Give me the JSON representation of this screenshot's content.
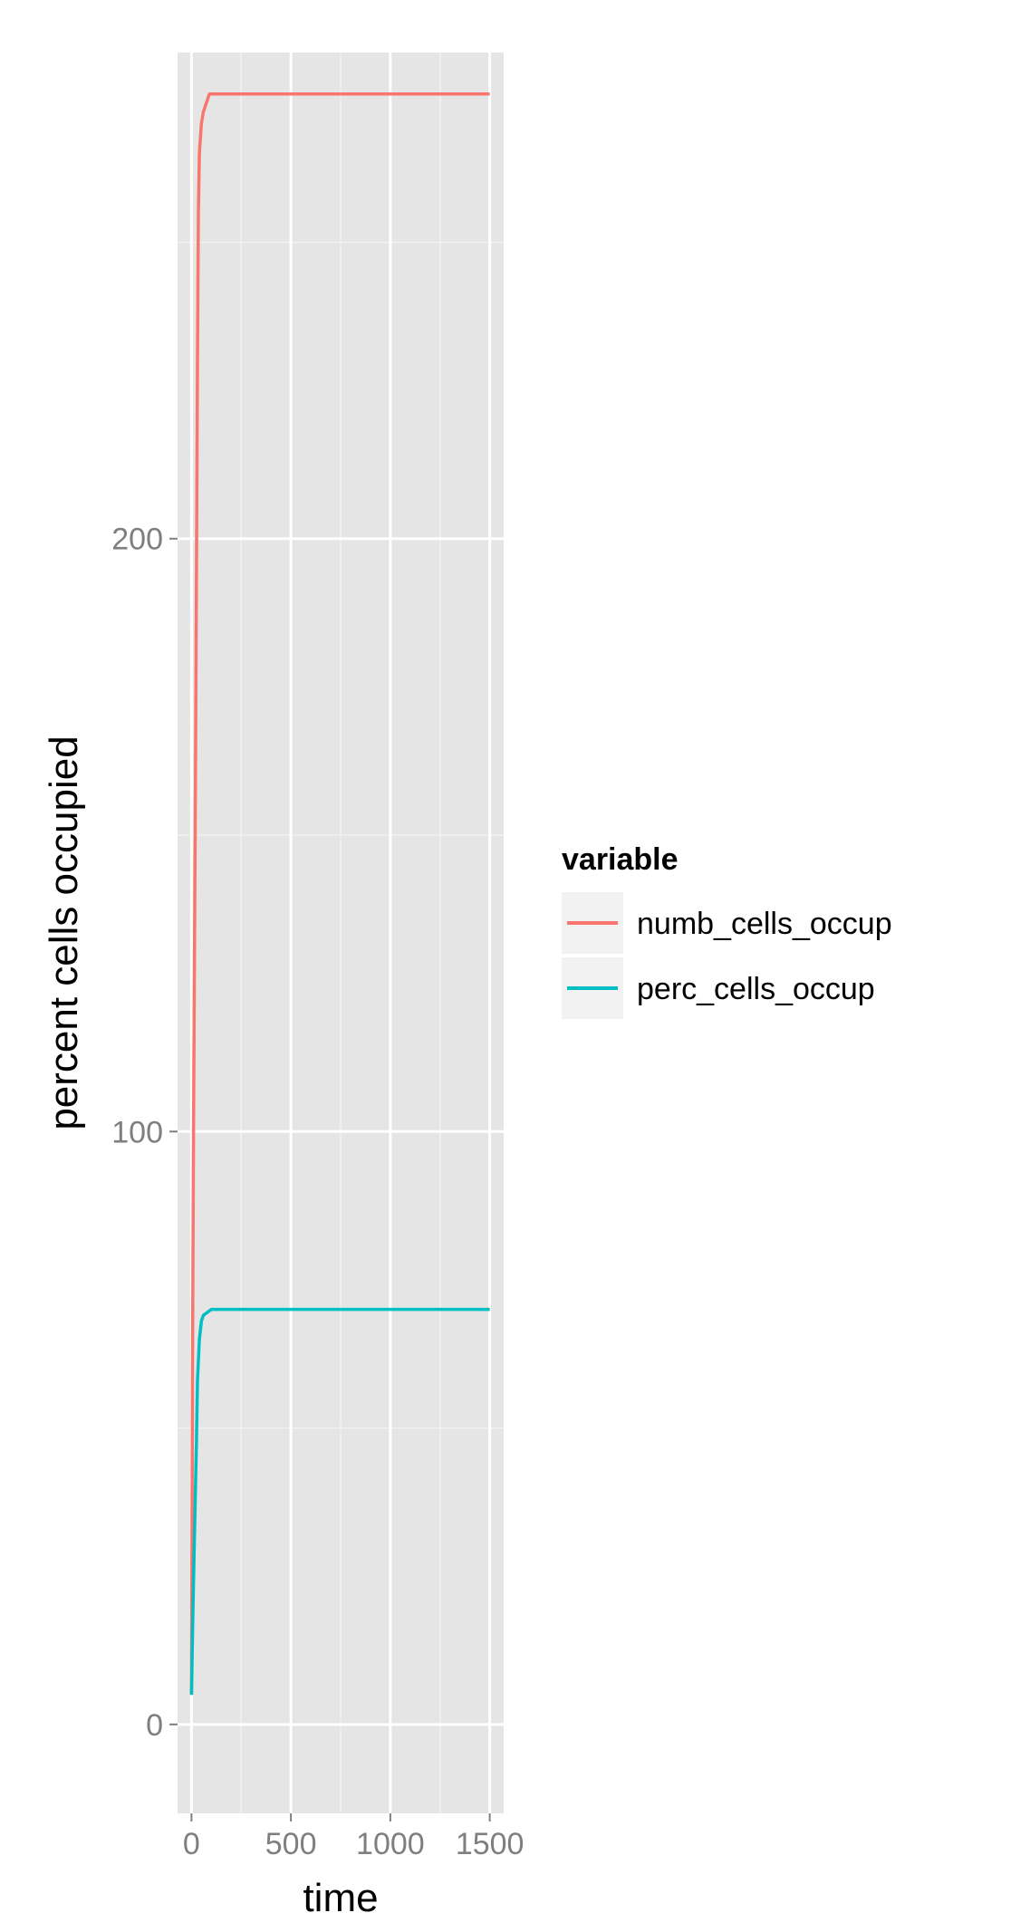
{
  "chart_data": {
    "type": "line",
    "title": "",
    "xlabel": "time",
    "ylabel": "percent cells occupied",
    "xlim": [
      -70,
      1570
    ],
    "ylim": [
      -15,
      282
    ],
    "x_ticks": [
      0,
      500,
      1000,
      1500
    ],
    "x_tick_labels": [
      "0",
      "500",
      "1000",
      "1500"
    ],
    "y_ticks": [
      0,
      100,
      200
    ],
    "y_tick_labels": [
      "0",
      "100",
      "200"
    ],
    "grid": true,
    "legend": {
      "title": "variable",
      "placement": "right"
    },
    "series": [
      {
        "name": "numb_cells_occup",
        "color": "#F8766D",
        "x": [
          0,
          5,
          10,
          15,
          20,
          25,
          30,
          35,
          40,
          50,
          60,
          70,
          80,
          90,
          100,
          1500
        ],
        "y": [
          5,
          60,
          100,
          130,
          160,
          195,
          230,
          255,
          265,
          270,
          272,
          273,
          274,
          275,
          275,
          275
        ]
      },
      {
        "name": "perc_cells_occup",
        "color": "#00BFC4",
        "x": [
          0,
          5,
          10,
          15,
          20,
          25,
          30,
          40,
          50,
          60,
          80,
          100,
          1500
        ],
        "y": [
          5,
          15,
          24,
          32,
          40,
          48,
          58,
          65,
          68,
          69,
          69.5,
          70,
          70
        ]
      }
    ]
  }
}
